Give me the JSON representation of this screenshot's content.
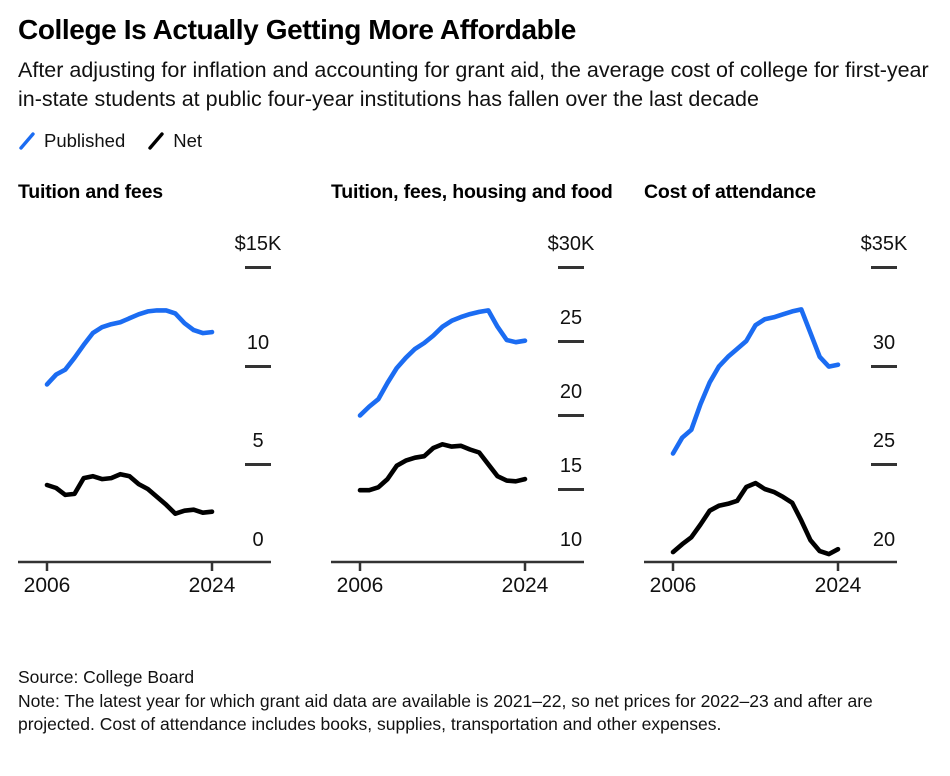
{
  "header": {
    "title": "College Is Actually Getting More Affordable",
    "subtitle": "After adjusting for inflation and accounting for grant aid, the average cost of college for first-year in-state students at public four-year institutions has fallen over the last decade"
  },
  "legend": {
    "published_label": "Published",
    "net_label": "Net"
  },
  "colors": {
    "published": "#1b6cf2",
    "net": "#000000",
    "axis": "#333333"
  },
  "footer": {
    "source": "Source: College Board",
    "note": "Note: The latest year for which grant aid data are available is 2021–22, so net prices for 2022–23 and after are projected. Cost of attendance includes books, supplies, transportation and other expenses."
  },
  "chart_data": [
    {
      "type": "line",
      "title": "Tuition and fees",
      "x": [
        2006,
        2007,
        2008,
        2009,
        2010,
        2011,
        2012,
        2013,
        2014,
        2015,
        2016,
        2017,
        2018,
        2019,
        2020,
        2021,
        2022,
        2023,
        2024
      ],
      "x_tick_labels": [
        "2006",
        "2024"
      ],
      "ylim": [
        0,
        15
      ],
      "y_ticks": [
        0,
        5,
        10,
        15
      ],
      "y_tick_labels": [
        "0",
        "5",
        "10",
        "$15K"
      ],
      "unit": "thousand USD",
      "grid": false,
      "series": [
        {
          "name": "Published",
          "color_key": "published",
          "values": [
            9.0,
            9.5,
            9.75,
            10.35,
            11.0,
            11.6,
            11.9,
            12.05,
            12.15,
            12.35,
            12.55,
            12.7,
            12.75,
            12.75,
            12.6,
            12.1,
            11.75,
            11.6,
            11.65
          ]
        },
        {
          "name": "Net",
          "color_key": "net",
          "values": [
            3.9,
            3.75,
            3.4,
            3.45,
            4.25,
            4.35,
            4.2,
            4.25,
            4.45,
            4.35,
            3.95,
            3.7,
            3.3,
            2.9,
            2.45,
            2.6,
            2.65,
            2.5,
            2.55
          ]
        }
      ]
    },
    {
      "type": "line",
      "title": "Tuition, fees, housing and food",
      "x": [
        2006,
        2007,
        2008,
        2009,
        2010,
        2011,
        2012,
        2013,
        2014,
        2015,
        2016,
        2017,
        2018,
        2019,
        2020,
        2021,
        2022,
        2023,
        2024
      ],
      "x_tick_labels": [
        "2006",
        "2024"
      ],
      "ylim": [
        10,
        30
      ],
      "y_ticks": [
        10,
        15,
        20,
        25,
        30
      ],
      "y_tick_labels": [
        "10",
        "15",
        "20",
        "25",
        "$30K"
      ],
      "unit": "thousand USD",
      "grid": false,
      "series": [
        {
          "name": "Published",
          "color_key": "published",
          "values": [
            19.9,
            20.5,
            21.0,
            22.1,
            23.1,
            23.8,
            24.4,
            24.8,
            25.3,
            25.9,
            26.3,
            26.55,
            26.75,
            26.9,
            27.0,
            25.9,
            25.0,
            24.85,
            24.95
          ]
        },
        {
          "name": "Net",
          "color_key": "net",
          "values": [
            14.85,
            14.85,
            15.05,
            15.6,
            16.5,
            16.85,
            17.05,
            17.15,
            17.7,
            17.95,
            17.8,
            17.85,
            17.6,
            17.4,
            16.6,
            15.8,
            15.5,
            15.45,
            15.6
          ]
        }
      ]
    },
    {
      "type": "line",
      "title": "Cost of attendance",
      "x": [
        2006,
        2007,
        2008,
        2009,
        2010,
        2011,
        2012,
        2013,
        2014,
        2015,
        2016,
        2017,
        2018,
        2019,
        2020,
        2021,
        2022,
        2023,
        2024
      ],
      "x_tick_labels": [
        "2006",
        "2024"
      ],
      "ylim": [
        20,
        35
      ],
      "y_ticks": [
        20,
        25,
        30,
        35
      ],
      "y_tick_labels": [
        "20",
        "25",
        "30",
        "$35K"
      ],
      "unit": "thousand USD",
      "grid": false,
      "series": [
        {
          "name": "Published",
          "color_key": "published",
          "values": [
            25.5,
            26.3,
            26.7,
            28.0,
            29.1,
            29.9,
            30.4,
            30.8,
            31.2,
            32.0,
            32.3,
            32.4,
            32.55,
            32.7,
            32.8,
            31.6,
            30.4,
            29.9,
            30.0
          ]
        },
        {
          "name": "Net",
          "color_key": "net",
          "values": [
            20.5,
            20.9,
            21.25,
            21.9,
            22.6,
            22.85,
            22.95,
            23.1,
            23.8,
            24.0,
            23.7,
            23.55,
            23.3,
            23.0,
            22.1,
            21.1,
            20.55,
            20.4,
            20.65
          ]
        }
      ]
    }
  ]
}
